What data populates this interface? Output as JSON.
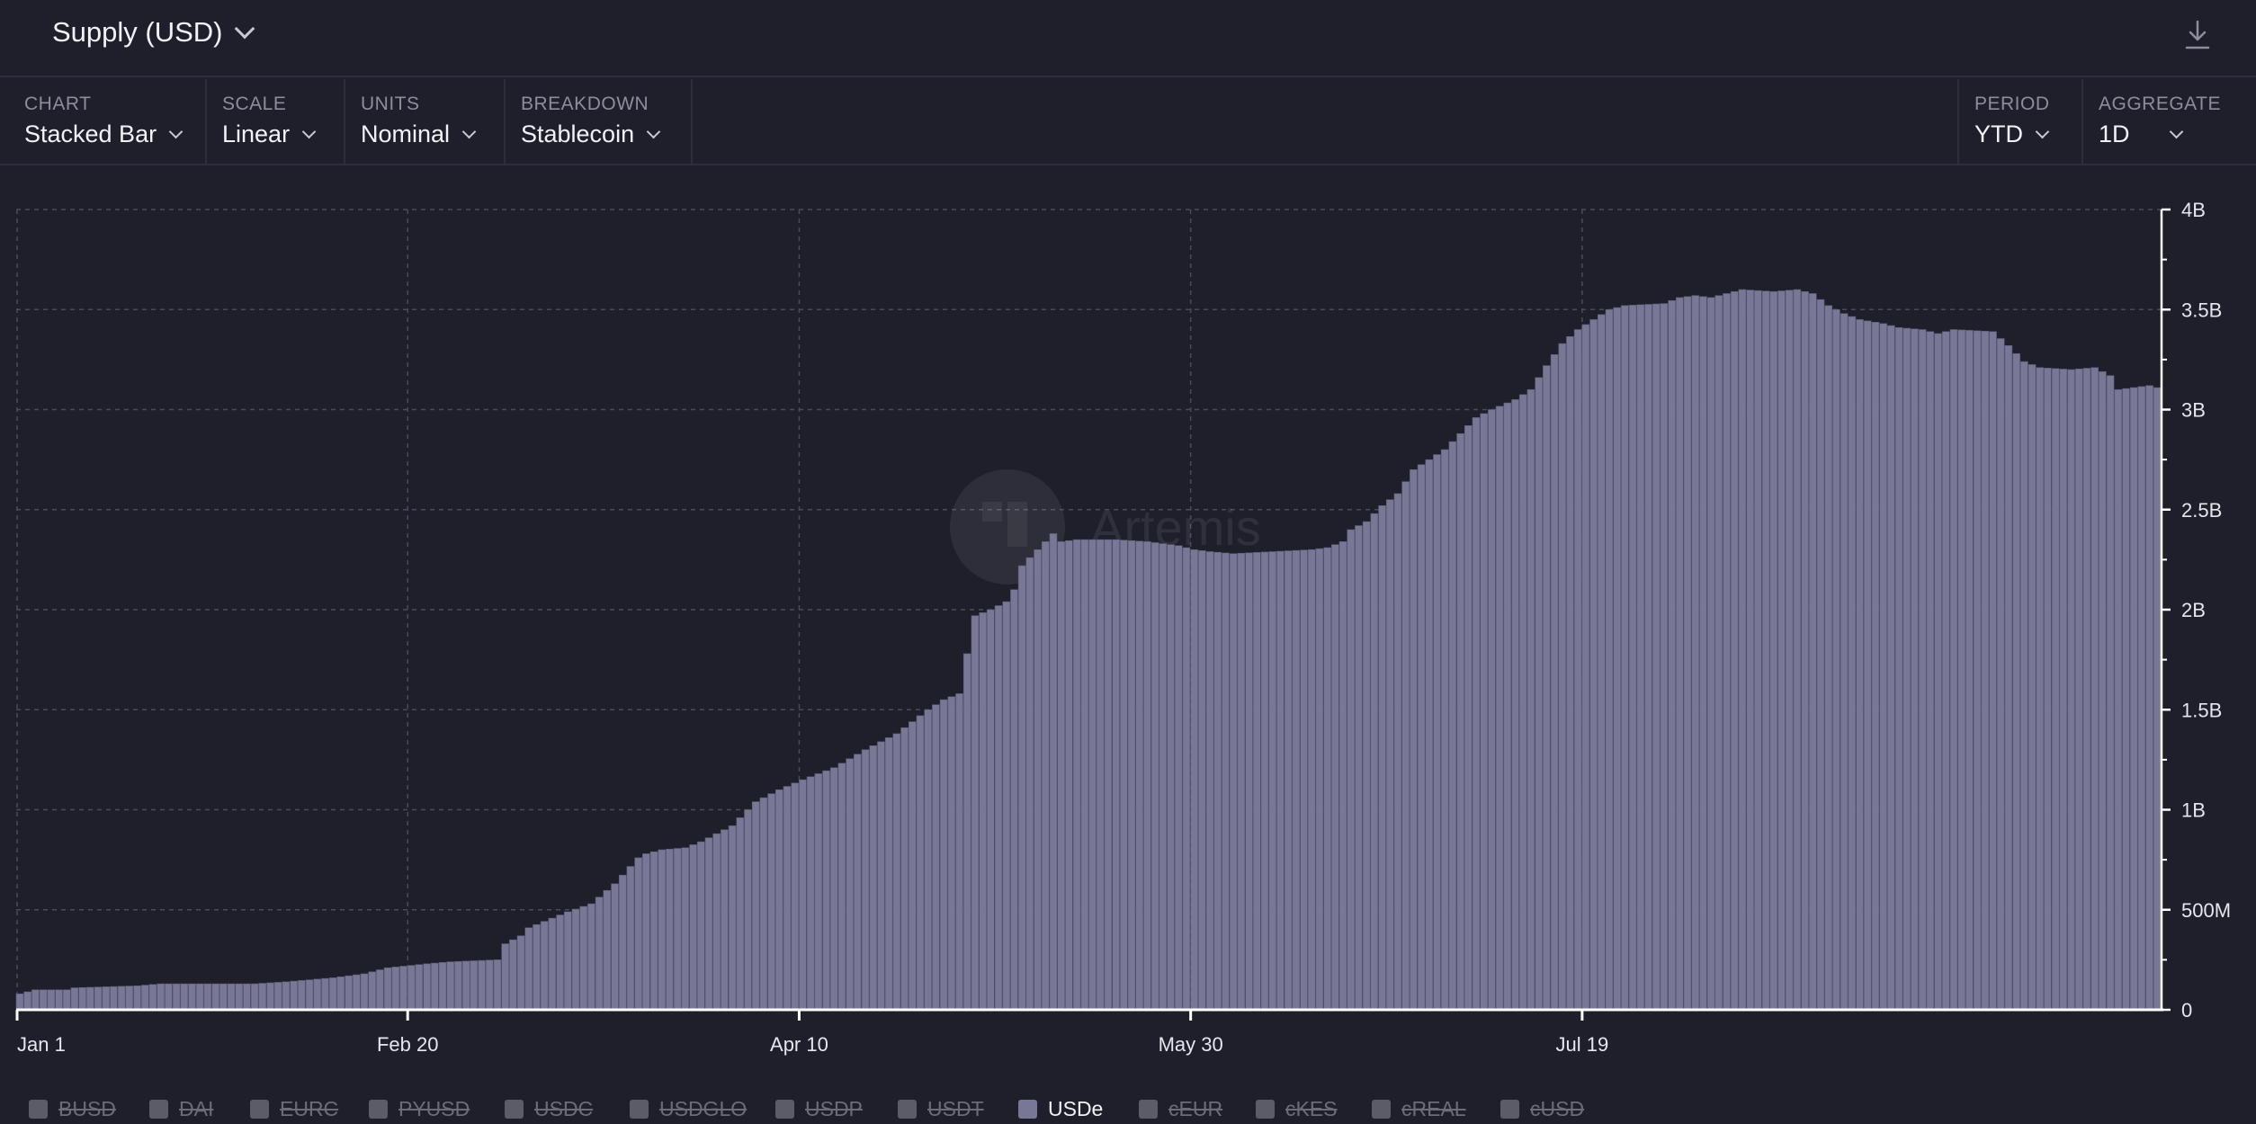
{
  "header": {
    "title": "Supply (USD)",
    "icon": "download-icon"
  },
  "controls": [
    {
      "label": "CHART",
      "value": "Stacked Bar"
    },
    {
      "label": "SCALE",
      "value": "Linear"
    },
    {
      "label": "UNITS",
      "value": "Nominal"
    },
    {
      "label": "BREAKDOWN",
      "value": "Stablecoin"
    },
    {
      "label": "PERIOD",
      "value": "YTD"
    },
    {
      "label": "AGGREGATE",
      "value": "1D"
    }
  ],
  "watermark": "Artemis",
  "colors": {
    "bar": "#787896",
    "background": "#1e1f2b",
    "grid": "#4a4b58"
  },
  "legend": [
    {
      "label": "BUSD",
      "active": false
    },
    {
      "label": "DAI",
      "active": false
    },
    {
      "label": "EURC",
      "active": false
    },
    {
      "label": "PYUSD",
      "active": false
    },
    {
      "label": "USDC",
      "active": false
    },
    {
      "label": "USDGLO",
      "active": false
    },
    {
      "label": "USDP",
      "active": false
    },
    {
      "label": "USDT",
      "active": false
    },
    {
      "label": "USDe",
      "active": true
    },
    {
      "label": "cEUR",
      "active": false
    },
    {
      "label": "cKES",
      "active": false
    },
    {
      "label": "cREAL",
      "active": false
    },
    {
      "label": "cUSD",
      "active": false
    }
  ],
  "chart_data": {
    "type": "bar",
    "stacked": true,
    "x_start": "Jan 1",
    "x_ticks": [
      "Jan 1",
      "Feb 20",
      "Apr 10",
      "May 30",
      "Jul 19"
    ],
    "y_ticks": [
      "0",
      "500M",
      "1B",
      "1.5B",
      "2B",
      "2.5B",
      "3B",
      "3.5B",
      "4B"
    ],
    "ylim": [
      0,
      4000000000
    ],
    "grid": true,
    "series": [
      {
        "name": "USDe",
        "keyframes_day_value_billions": [
          [
            0,
            0.08
          ],
          [
            1,
            0.09
          ],
          [
            2,
            0.1
          ],
          [
            6,
            0.1
          ],
          [
            7,
            0.11
          ],
          [
            15,
            0.12
          ],
          [
            18,
            0.13
          ],
          [
            30,
            0.13
          ],
          [
            34,
            0.14
          ],
          [
            40,
            0.16
          ],
          [
            44,
            0.18
          ],
          [
            47,
            0.21
          ],
          [
            52,
            0.23
          ],
          [
            55,
            0.24
          ],
          [
            61,
            0.25
          ],
          [
            62,
            0.33
          ],
          [
            64,
            0.37
          ],
          [
            65,
            0.41
          ],
          [
            70,
            0.49
          ],
          [
            73,
            0.53
          ],
          [
            76,
            0.63
          ],
          [
            79,
            0.76
          ],
          [
            80,
            0.78
          ],
          [
            82,
            0.8
          ],
          [
            85,
            0.81
          ],
          [
            87,
            0.84
          ],
          [
            88,
            0.86
          ],
          [
            91,
            0.92
          ],
          [
            94,
            1.04
          ],
          [
            97,
            1.1
          ],
          [
            100,
            1.15
          ],
          [
            104,
            1.21
          ],
          [
            108,
            1.3
          ],
          [
            112,
            1.38
          ],
          [
            114,
            1.44
          ],
          [
            116,
            1.5
          ],
          [
            118,
            1.55
          ],
          [
            120,
            1.58
          ],
          [
            121,
            1.78
          ],
          [
            122,
            1.97
          ],
          [
            124,
            2.0
          ],
          [
            126,
            2.04
          ],
          [
            127,
            2.1
          ],
          [
            128,
            2.22
          ],
          [
            130,
            2.3
          ],
          [
            132,
            2.38
          ],
          [
            133,
            2.34
          ],
          [
            135,
            2.35
          ],
          [
            140,
            2.35
          ],
          [
            144,
            2.34
          ],
          [
            148,
            2.32
          ],
          [
            150,
            2.3
          ],
          [
            152,
            2.29
          ],
          [
            155,
            2.28
          ],
          [
            160,
            2.29
          ],
          [
            165,
            2.3
          ],
          [
            167,
            2.31
          ],
          [
            169,
            2.34
          ],
          [
            170,
            2.4
          ],
          [
            172,
            2.44
          ],
          [
            174,
            2.52
          ],
          [
            176,
            2.58
          ],
          [
            178,
            2.7
          ],
          [
            180,
            2.75
          ],
          [
            182,
            2.8
          ],
          [
            184,
            2.88
          ],
          [
            186,
            2.96
          ],
          [
            188,
            3.0
          ],
          [
            191,
            3.05
          ],
          [
            193,
            3.1
          ],
          [
            195,
            3.22
          ],
          [
            197,
            3.33
          ],
          [
            199,
            3.4
          ],
          [
            201,
            3.45
          ],
          [
            203,
            3.5
          ],
          [
            205,
            3.52
          ],
          [
            210,
            3.53
          ],
          [
            212,
            3.56
          ],
          [
            214,
            3.57
          ],
          [
            216,
            3.56
          ],
          [
            218,
            3.58
          ],
          [
            220,
            3.6
          ],
          [
            224,
            3.59
          ],
          [
            227,
            3.6
          ],
          [
            229,
            3.58
          ],
          [
            231,
            3.52
          ],
          [
            233,
            3.48
          ],
          [
            235,
            3.45
          ],
          [
            238,
            3.43
          ],
          [
            240,
            3.41
          ],
          [
            243,
            3.4
          ],
          [
            245,
            3.38
          ],
          [
            247,
            3.4
          ],
          [
            252,
            3.39
          ],
          [
            254,
            3.32
          ],
          [
            256,
            3.24
          ],
          [
            258,
            3.21
          ],
          [
            262,
            3.2
          ],
          [
            265,
            3.21
          ],
          [
            267,
            3.17
          ],
          [
            268,
            3.1
          ],
          [
            270,
            3.11
          ],
          [
            272,
            3.12
          ],
          [
            273,
            3.11
          ]
        ]
      }
    ]
  }
}
